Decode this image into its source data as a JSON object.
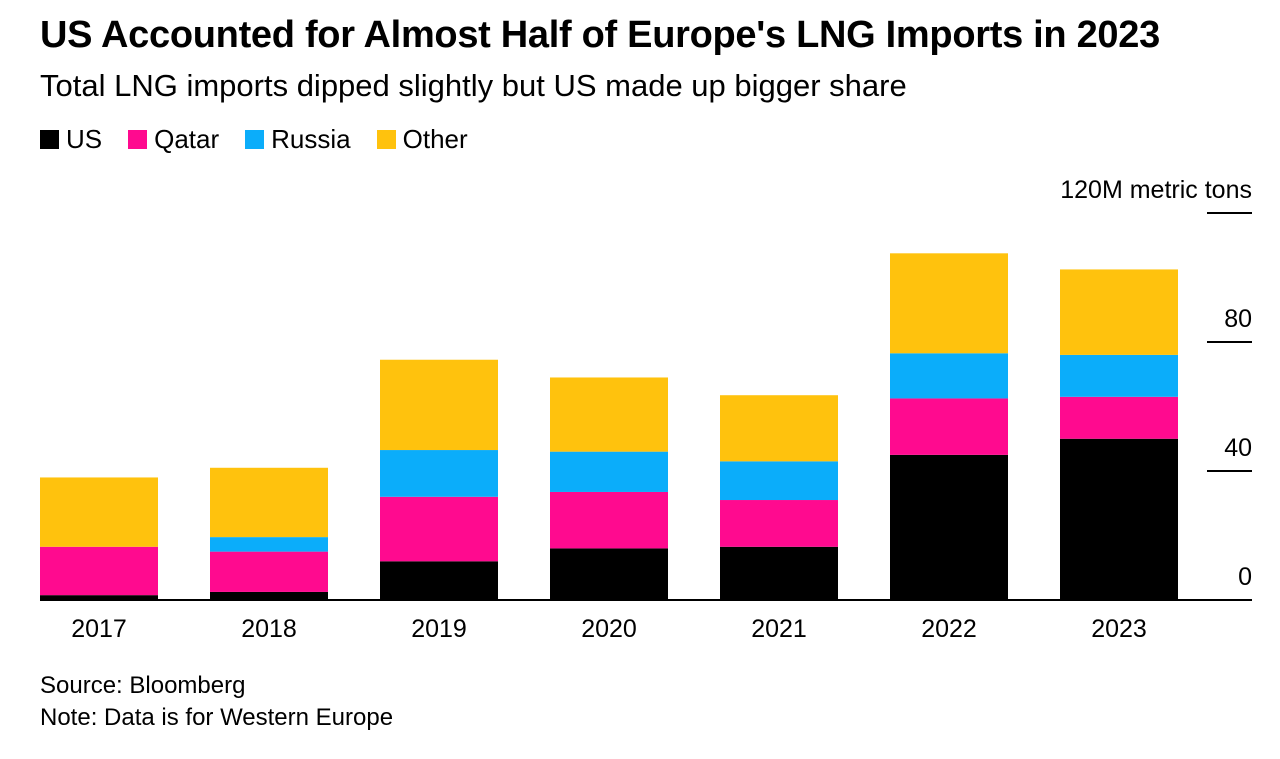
{
  "chart_data": {
    "type": "bar",
    "stacked": true,
    "title": "US Accounted for Almost Half of Europe's LNG Imports in 2023",
    "subtitle": "Total LNG imports dipped slightly but US made up bigger share",
    "y_unit_label": "120M metric tons",
    "ylim": [
      0,
      120
    ],
    "yticks": [
      0,
      40,
      80,
      120
    ],
    "ytick_labels": [
      "0",
      "40",
      "80",
      "120M metric tons"
    ],
    "y_axis_position": "right",
    "legend_position": "top-left",
    "grid": false,
    "categories": [
      "2017",
      "2018",
      "2019",
      "2020",
      "2021",
      "2022",
      "2023"
    ],
    "series": [
      {
        "name": "US",
        "color": "#000000",
        "values": [
          1.5,
          2.5,
          12,
          16,
          16.5,
          45,
          50
        ]
      },
      {
        "name": "Qatar",
        "color": "#ff0a8f",
        "values": [
          15,
          12.5,
          20,
          17.5,
          14.5,
          17.5,
          13
        ]
      },
      {
        "name": "Russia",
        "color": "#0badfa",
        "values": [
          0,
          4.5,
          14.5,
          12.5,
          12,
          14,
          13
        ]
      },
      {
        "name": "Other",
        "color": "#ffc20d",
        "values": [
          21.5,
          21.5,
          28,
          23,
          20.5,
          31,
          26.5
        ]
      }
    ]
  },
  "source": "Source: Bloomberg",
  "note": "Note: Data is for Western Europe"
}
